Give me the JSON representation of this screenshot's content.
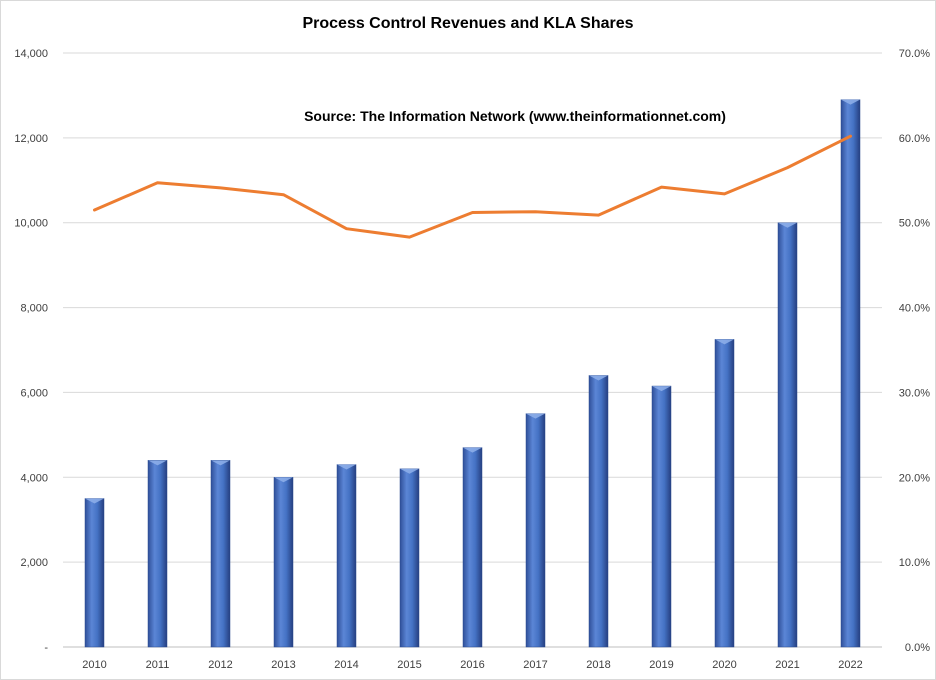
{
  "chart_data": {
    "type": "bar",
    "title": "Process Control Revenues and KLA Shares",
    "annotation": "Source: The Information Network (www.theinformationnet.com)",
    "categories": [
      "2010",
      "2011",
      "2012",
      "2013",
      "2014",
      "2015",
      "2016",
      "2017",
      "2018",
      "2019",
      "2020",
      "2021",
      "2022"
    ],
    "series": [
      {
        "type": "bar",
        "axis": "left",
        "color": "#4472c4",
        "values": [
          3500,
          4400,
          4400,
          4000,
          4300,
          4200,
          4700,
          5500,
          6400,
          6150,
          7250,
          10000,
          12900
        ]
      },
      {
        "type": "line",
        "axis": "right",
        "color": "#ed7d31",
        "values": [
          51.5,
          54.7,
          54.1,
          53.3,
          49.3,
          48.3,
          51.2,
          51.3,
          50.9,
          54.2,
          53.4,
          56.5,
          60.2
        ]
      }
    ],
    "y_left": {
      "min": 0,
      "max": 14000,
      "step": 2000,
      "tick_labels": [
        "-",
        "2,000",
        "4,000",
        "6,000",
        "8,000",
        "10,000",
        "12,000",
        "14,000"
      ]
    },
    "y_right": {
      "min": 0,
      "max": 70,
      "step": 10,
      "tick_labels": [
        "0.0%",
        "10.0%",
        "20.0%",
        "30.0%",
        "40.0%",
        "50.0%",
        "60.0%",
        "70.0%"
      ]
    },
    "grid": true,
    "legend": "none"
  }
}
